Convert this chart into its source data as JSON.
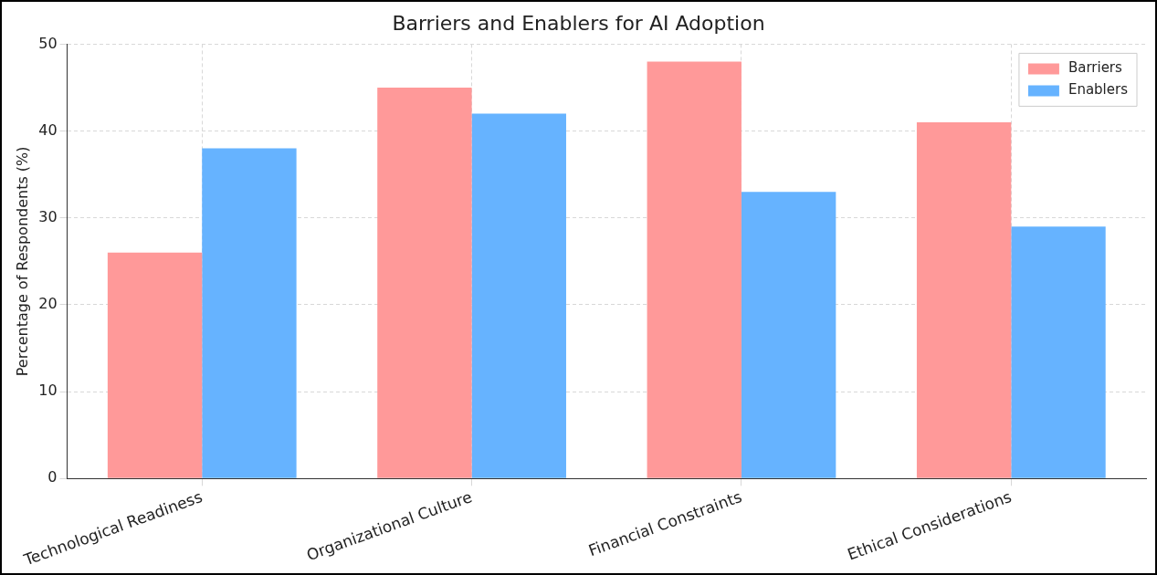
{
  "chart_data": {
    "type": "bar",
    "title": "Barriers and Enablers for AI Adoption",
    "ylabel": "Percentage of Respondents (%)",
    "categories": [
      "Technological Readiness",
      "Organizational Culture",
      "Financial Constraints",
      "Ethical Considerations"
    ],
    "series": [
      {
        "name": "Barriers",
        "color": "#ff9999",
        "values": [
          26,
          45,
          48,
          41
        ]
      },
      {
        "name": "Enablers",
        "color": "#66b3ff",
        "values": [
          38,
          42,
          33,
          29
        ]
      }
    ],
    "ylim": [
      0,
      50
    ],
    "yticks": [
      0,
      10,
      20,
      30,
      40,
      50
    ],
    "grid": true,
    "legend": "top right"
  }
}
